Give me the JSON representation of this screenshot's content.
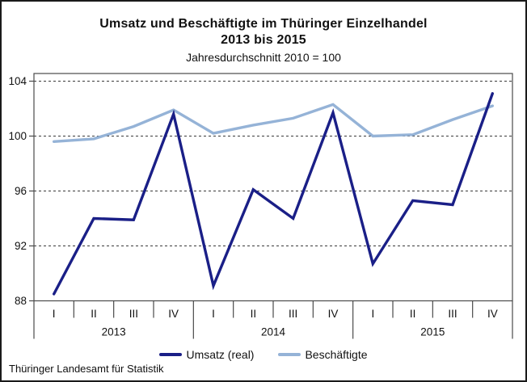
{
  "header": {
    "title_line1": "Umsatz und Beschäftigte im Thüringer Einzelhandel",
    "title_line2": "2013 bis 2015",
    "subtitle": "Jahresdurchschnitt 2010 = 100"
  },
  "footer": {
    "source": "Thüringer Landesamt für Statistik"
  },
  "chart_data": {
    "type": "line",
    "title": "Umsatz und Beschäftigte im Thüringer Einzelhandel 2013 bis 2015",
    "subtitle": "Jahresdurchschnitt 2010 = 100",
    "categories": [
      "2013 I",
      "2013 II",
      "2013 III",
      "2013 IV",
      "2014 I",
      "2014 II",
      "2014 III",
      "2014 IV",
      "2015 I",
      "2015 II",
      "2015 III",
      "2015 IV"
    ],
    "quarter_labels": [
      "I",
      "II",
      "III",
      "IV"
    ],
    "year_labels": [
      "2013",
      "2014",
      "2015"
    ],
    "series": [
      {
        "name": "Umsatz (real)",
        "color": "#1a1f87",
        "values": [
          88.5,
          94.0,
          93.9,
          101.6,
          89.1,
          96.1,
          94.0,
          101.7,
          90.7,
          95.3,
          95.0,
          103.1
        ]
      },
      {
        "name": "Beschäftigte",
        "color": "#95b3d7",
        "values": [
          99.6,
          99.8,
          100.7,
          101.9,
          100.2,
          100.8,
          101.3,
          102.3,
          100.0,
          100.1,
          101.2,
          102.2
        ]
      }
    ],
    "ylim": [
      88,
      104.5
    ],
    "y_ticks": [
      88,
      92,
      96,
      100,
      104
    ],
    "xlabel": "",
    "ylabel": "",
    "grid": "horizontal-dashed",
    "legend_position": "bottom",
    "grid_color": "#3a3a3a",
    "axis_color": "#4a4a4a"
  }
}
